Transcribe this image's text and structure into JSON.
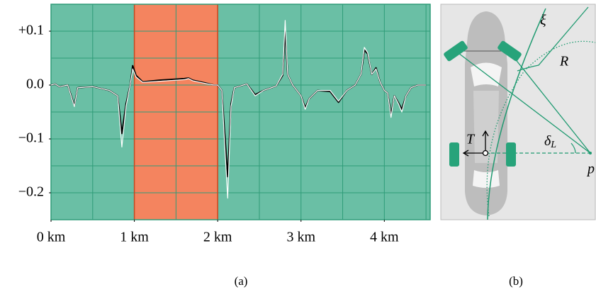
{
  "chart_data": {
    "type": "line",
    "x": [
      0,
      0.05,
      0.1,
      0.2,
      0.28,
      0.32,
      0.5,
      0.7,
      0.8,
      0.85,
      0.9,
      0.95,
      0.98,
      1.02,
      1.1,
      1.3,
      1.6,
      1.65,
      1.7,
      1.85,
      1.95,
      2.0,
      2.05,
      2.08,
      2.12,
      2.16,
      2.2,
      2.35,
      2.45,
      2.55,
      2.7,
      2.78,
      2.81,
      2.84,
      2.9,
      3.0,
      3.05,
      3.1,
      3.2,
      3.35,
      3.45,
      3.55,
      3.65,
      3.72,
      3.76,
      3.8,
      3.85,
      3.9,
      3.95,
      4.0,
      4.04,
      4.08,
      4.12,
      4.17,
      4.21,
      4.26,
      4.32,
      4.4,
      4.5
    ],
    "series": [
      {
        "color": "#000000",
        "values": [
          0,
          0.002,
          -0.003,
          0,
          -0.038,
          -0.005,
          -0.003,
          -0.01,
          -0.02,
          -0.09,
          -0.035,
          0,
          0.036,
          0.018,
          0.006,
          0.009,
          0.012,
          0.013,
          0.009,
          0.004,
          0,
          0,
          -0.01,
          -0.08,
          -0.17,
          -0.035,
          -0.005,
          0.002,
          -0.018,
          -0.01,
          -0.002,
          0.018,
          0.1,
          0.02,
          0,
          -0.02,
          -0.042,
          -0.025,
          -0.01,
          -0.012,
          -0.032,
          -0.01,
          0,
          0.02,
          0.065,
          0.058,
          0.02,
          0.032,
          0.005,
          -0.01,
          -0.015,
          -0.055,
          -0.02,
          -0.033,
          -0.045,
          -0.02,
          -0.005,
          0,
          0
        ]
      },
      {
        "color": "#ffffff",
        "values": [
          0,
          0.002,
          -0.003,
          0,
          -0.04,
          -0.005,
          -0.003,
          -0.01,
          -0.02,
          -0.115,
          -0.04,
          0,
          0.03,
          0.015,
          0.005,
          0.007,
          0.01,
          0.012,
          0.008,
          0.003,
          0,
          0,
          -0.01,
          -0.1,
          -0.21,
          -0.04,
          -0.005,
          0.002,
          -0.02,
          -0.01,
          -0.002,
          0.02,
          0.12,
          0.02,
          0,
          -0.02,
          -0.045,
          -0.025,
          -0.01,
          -0.01,
          -0.03,
          -0.01,
          0,
          0.02,
          0.07,
          0.06,
          0.02,
          0.03,
          0.005,
          -0.01,
          -0.015,
          -0.06,
          -0.02,
          -0.035,
          -0.05,
          -0.02,
          -0.005,
          0,
          0
        ]
      }
    ],
    "xlim": [
      0,
      4.55
    ],
    "ylim": [
      -0.25,
      0.15
    ],
    "xticks": [
      {
        "value": 0,
        "label": "0 km"
      },
      {
        "value": 1,
        "label": "1 km"
      },
      {
        "value": 2,
        "label": "2 km"
      },
      {
        "value": 3,
        "label": "3 km"
      },
      {
        "value": 4,
        "label": "4 km"
      }
    ],
    "yticks": [
      {
        "value": 0.1,
        "label": "+0.1"
      },
      {
        "value": 0,
        "label": "0.0"
      },
      {
        "value": -0.1,
        "label": "−0.1"
      },
      {
        "value": -0.2,
        "label": "−0.2"
      }
    ],
    "grid": true,
    "xgrid": [
      0.5,
      1,
      1.5,
      2,
      2.5,
      3,
      3.5,
      4,
      4.5
    ],
    "ygrid": [
      0.1,
      0.05,
      0,
      -0.05,
      -0.1,
      -0.15,
      -0.2
    ],
    "background": "#6abfa5",
    "grid_color": "#2f9c78",
    "highlight": {
      "range": [
        1,
        2
      ],
      "color": "#f4845f",
      "edge": "#c9481f"
    },
    "caption": "(a)"
  },
  "diagram": {
    "labels": {
      "xi": "ξ",
      "radius": "R",
      "delta": {
        "symbol": "δ",
        "subscript": "L"
      },
      "torque": "T",
      "point": "p"
    },
    "caption": "(b)"
  }
}
